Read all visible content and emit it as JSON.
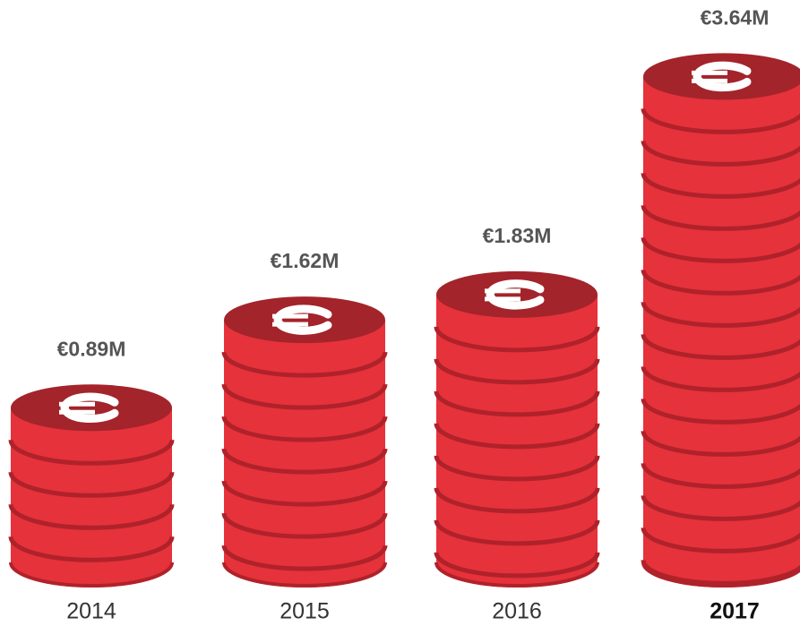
{
  "chart_data": {
    "type": "coin-stack",
    "categories": [
      "2014",
      "2015",
      "2016",
      "2017"
    ],
    "values": [
      0.89,
      1.62,
      1.83,
      3.64
    ],
    "value_labels": [
      "€0.89M",
      "€1.62M",
      "€1.83M",
      "€3.64M"
    ],
    "color": "#e6323b"
  }
}
